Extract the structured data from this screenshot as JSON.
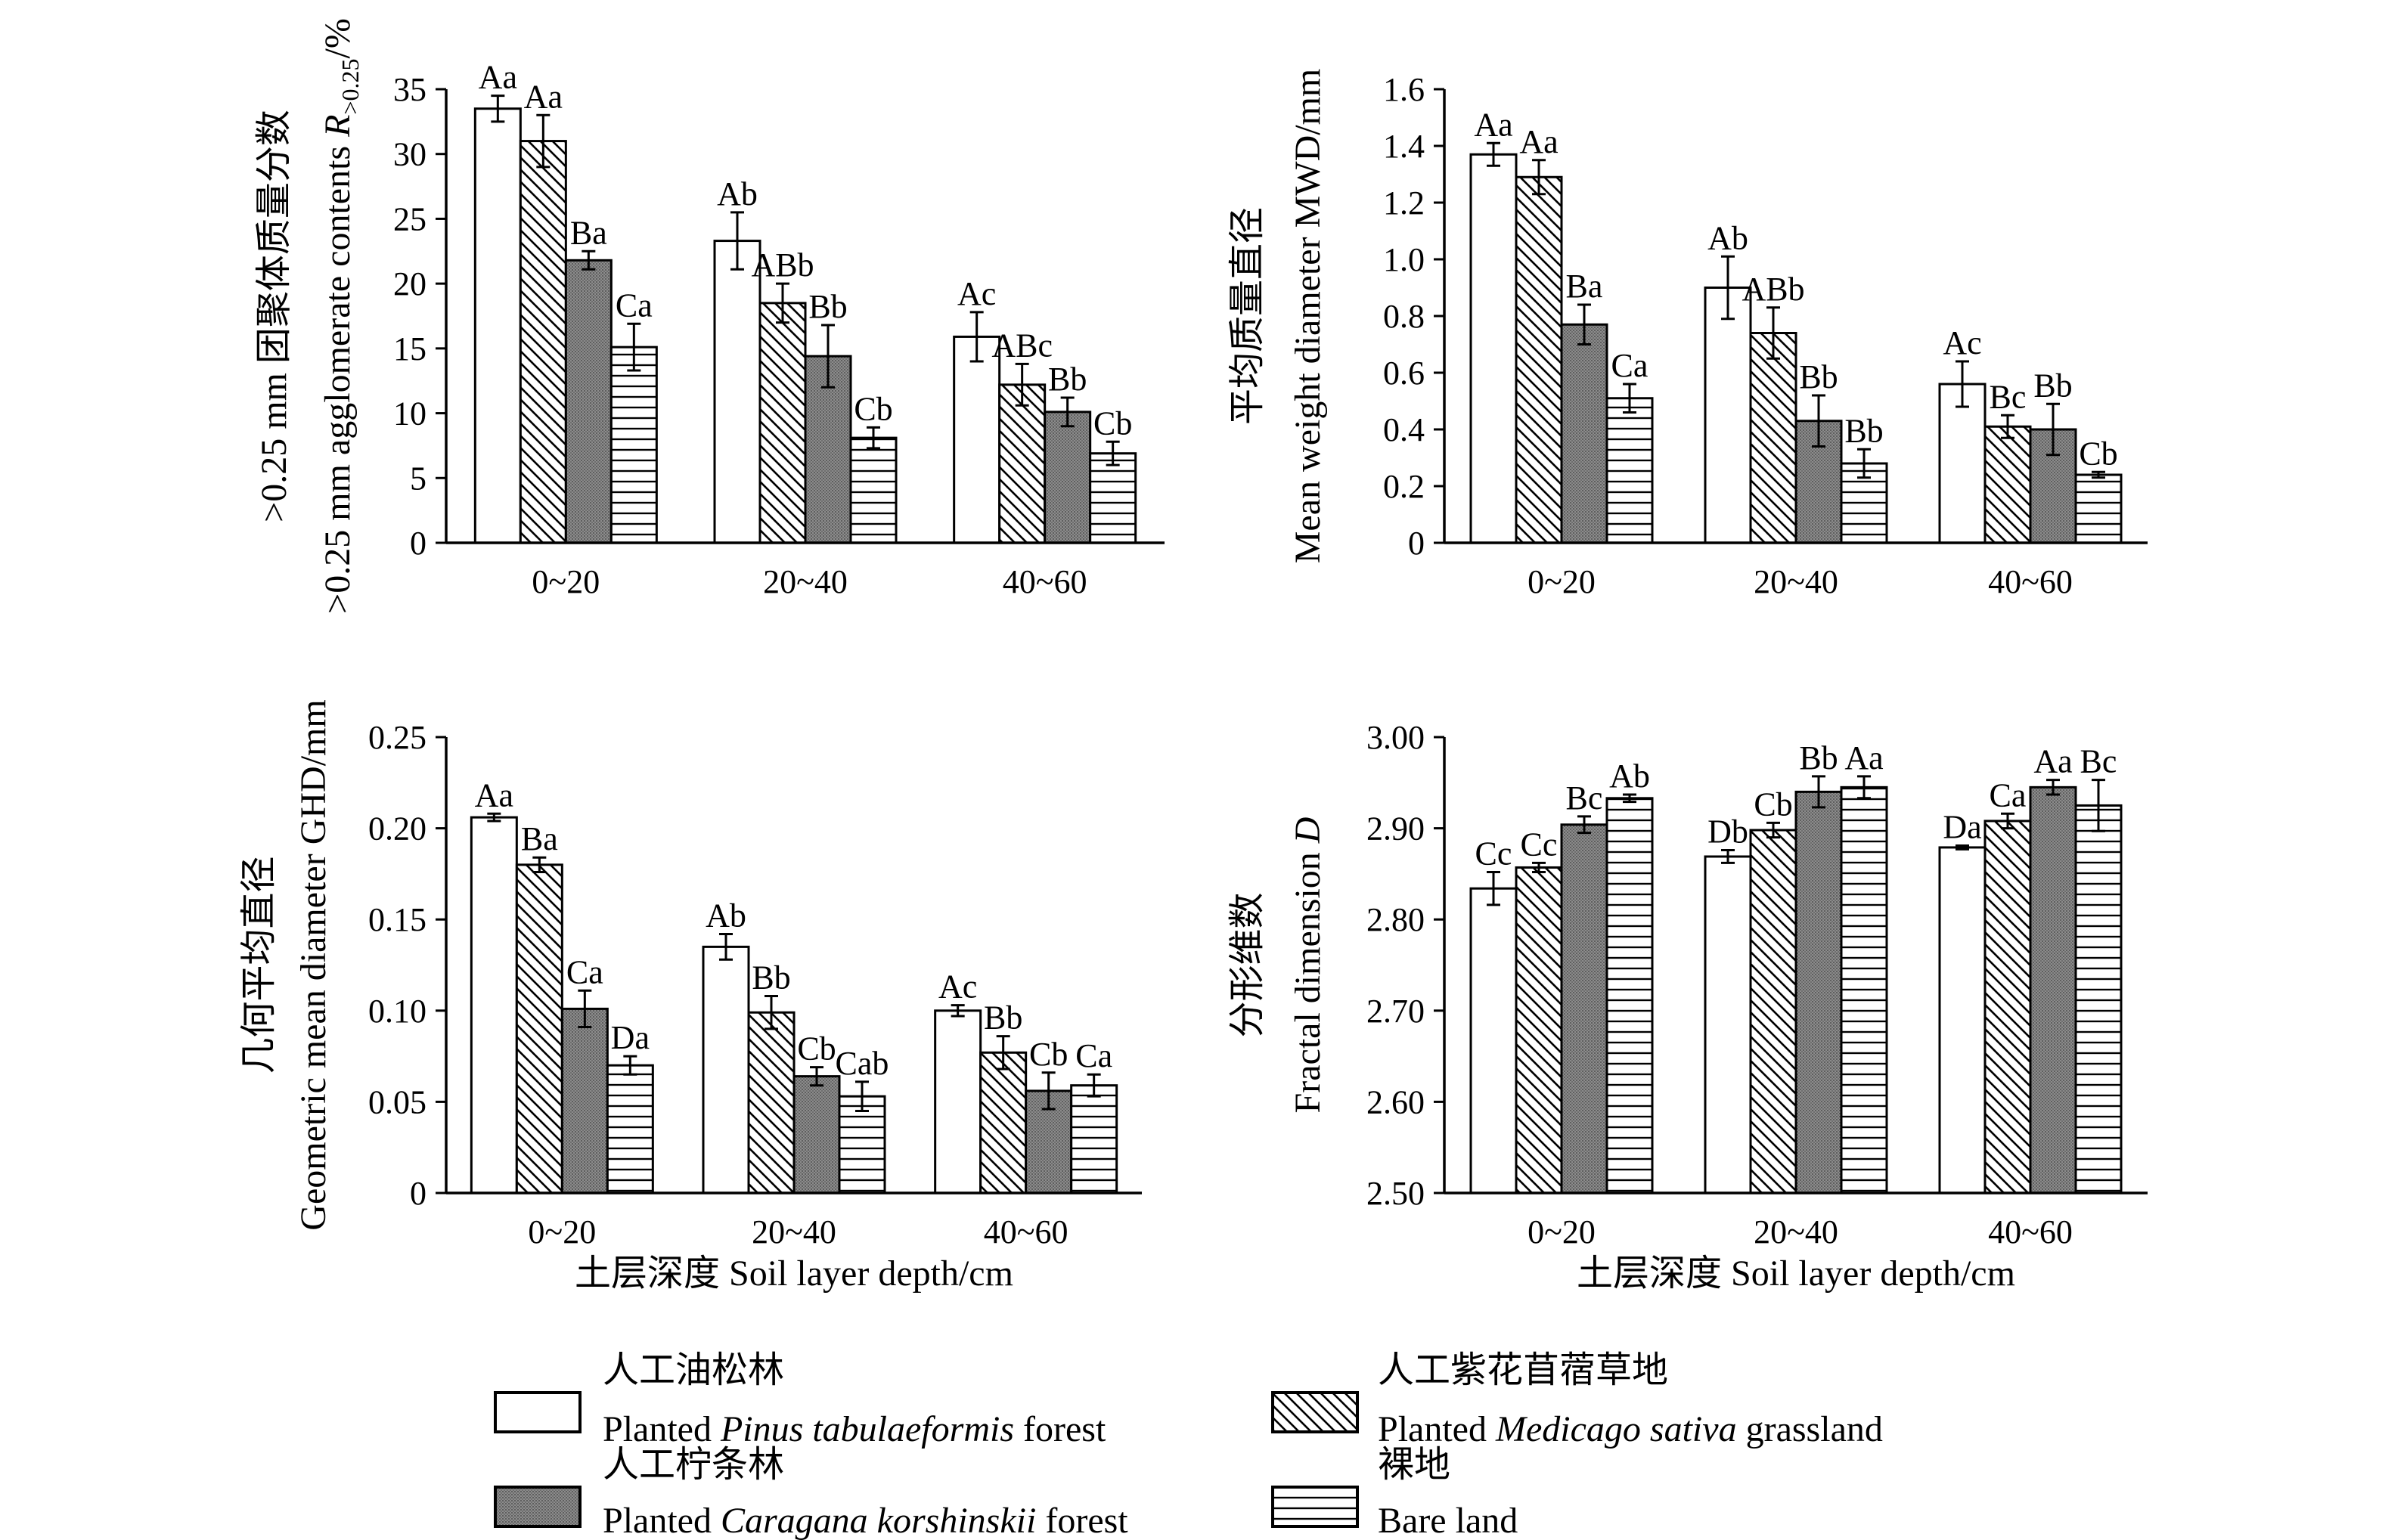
{
  "legend": {
    "items": [
      {
        "key": "pinus",
        "cn": "人工油松林",
        "en_pre": "Planted ",
        "en_ital": "Pinus tabulaeformis",
        "en_post": " forest",
        "pattern": "white"
      },
      {
        "key": "medicago",
        "cn": "人工紫花苜蓿草地",
        "en_pre": "Planted ",
        "en_ital": "Medicago sativa",
        "en_post": " grassland",
        "pattern": "diag"
      },
      {
        "key": "caragana",
        "cn": "人工柠条林",
        "en_pre": "Planted ",
        "en_ital": "Caragana korshinskii",
        "en_post": " forest",
        "pattern": "grey"
      },
      {
        "key": "bare",
        "cn": "裸地",
        "en_pre": "Bare land",
        "en_ital": "",
        "en_post": "",
        "pattern": "hlines"
      }
    ]
  },
  "chart_data": [
    {
      "id": "r025",
      "type": "bar",
      "categories": [
        "0~20",
        "20~40",
        "40~60"
      ],
      "ylabel_cn": ">0.25 mm 团聚体质量分数",
      "ylabel_en_pre": ">0.25 mm agglomerate contents ",
      "ylabel_en_sym": "R",
      "ylabel_en_sub": ">0.25",
      "ylabel_en_post": "/%",
      "xlabel": "",
      "ylim": [
        0,
        35
      ],
      "yticks": [
        0,
        5,
        10,
        15,
        20,
        25,
        30,
        35
      ],
      "ytick_labels": [
        "0",
        "5",
        "10",
        "15",
        "20",
        "25",
        "30",
        "35"
      ],
      "series": [
        {
          "name": "Planted Pinus tabulaeformis forest",
          "values": [
            33.5,
            23.3,
            15.9
          ],
          "errors": [
            1.0,
            2.2,
            1.9
          ],
          "labels": [
            "Aa",
            "Ab",
            "Ac"
          ]
        },
        {
          "name": "Planted Medicago sativa grassland",
          "values": [
            31.0,
            18.5,
            12.2
          ],
          "errors": [
            2.0,
            1.5,
            1.6
          ],
          "labels": [
            "Aa",
            "ABb",
            "ABc"
          ]
        },
        {
          "name": "Planted Caragana korshinskii forest",
          "values": [
            21.8,
            14.4,
            10.1
          ],
          "errors": [
            0.7,
            2.4,
            1.1
          ],
          "labels": [
            "Ba",
            "Bb",
            "Bb"
          ]
        },
        {
          "name": "Bare land",
          "values": [
            15.1,
            8.1,
            6.9
          ],
          "errors": [
            1.8,
            0.8,
            0.9
          ],
          "labels": [
            "Ca",
            "Cb",
            "Cb"
          ]
        }
      ]
    },
    {
      "id": "mwd",
      "type": "bar",
      "categories": [
        "0~20",
        "20~40",
        "40~60"
      ],
      "ylabel_cn": "平均质量直径",
      "ylabel_en": "Mean weight diameter MWD/mm",
      "xlabel": "",
      "ylim": [
        0,
        1.6
      ],
      "yticks": [
        0,
        0.2,
        0.4,
        0.6,
        0.8,
        1.0,
        1.2,
        1.4,
        1.6
      ],
      "ytick_labels": [
        "0",
        "0.2",
        "0.4",
        "0.6",
        "0.8",
        "1.0",
        "1.2",
        "1.4",
        "1.6"
      ],
      "series": [
        {
          "name": "Planted Pinus tabulaeformis forest",
          "values": [
            1.37,
            0.9,
            0.56
          ],
          "errors": [
            0.04,
            0.11,
            0.08
          ],
          "labels": [
            "Aa",
            "Ab",
            "Ac"
          ]
        },
        {
          "name": "Planted Medicago sativa grassland",
          "values": [
            1.29,
            0.74,
            0.41
          ],
          "errors": [
            0.06,
            0.09,
            0.04
          ],
          "labels": [
            "Aa",
            "ABb",
            "Bc"
          ]
        },
        {
          "name": "Planted Caragana korshinskii forest",
          "values": [
            0.77,
            0.43,
            0.4
          ],
          "errors": [
            0.07,
            0.09,
            0.09
          ],
          "labels": [
            "Ba",
            "Bb",
            "Bb"
          ]
        },
        {
          "name": "Bare land",
          "values": [
            0.51,
            0.28,
            0.24
          ],
          "errors": [
            0.05,
            0.05,
            0.01
          ],
          "labels": [
            "Ca",
            "Bb",
            "Cb"
          ]
        }
      ]
    },
    {
      "id": "ghd",
      "type": "bar",
      "categories": [
        "0~20",
        "20~40",
        "40~60"
      ],
      "ylabel_cn": "几何平均直径",
      "ylabel_en": "Geometric mean diameter GHD/mm",
      "xlabel": "土层深度 Soil layer depth/cm",
      "ylim": [
        0,
        0.25
      ],
      "yticks": [
        0,
        0.05,
        0.1,
        0.15,
        0.2,
        0.25
      ],
      "ytick_labels": [
        "0",
        "0.05",
        "0.10",
        "0.15",
        "0.20",
        "0.25"
      ],
      "series": [
        {
          "name": "Planted Pinus tabulaeformis forest",
          "values": [
            0.206,
            0.135,
            0.1
          ],
          "errors": [
            0.002,
            0.007,
            0.003
          ],
          "labels": [
            "Aa",
            "Ab",
            "Ac"
          ]
        },
        {
          "name": "Planted Medicago sativa grassland",
          "values": [
            0.18,
            0.099,
            0.077
          ],
          "errors": [
            0.004,
            0.009,
            0.009
          ],
          "labels": [
            "Ba",
            "Bb",
            "Bb"
          ]
        },
        {
          "name": "Planted Caragana korshinskii forest",
          "values": [
            0.101,
            0.064,
            0.056
          ],
          "errors": [
            0.01,
            0.005,
            0.01
          ],
          "labels": [
            "Ca",
            "Cb",
            "Cb"
          ]
        },
        {
          "name": "Bare land",
          "values": [
            0.07,
            0.053,
            0.059
          ],
          "errors": [
            0.005,
            0.008,
            0.006
          ],
          "labels": [
            "Da",
            "Cab",
            "Ca"
          ]
        }
      ]
    },
    {
      "id": "fractal",
      "type": "bar",
      "categories": [
        "0~20",
        "20~40",
        "40~60"
      ],
      "ylabel_cn": "分形维数",
      "ylabel_en_pre": "Fractal dimension ",
      "ylabel_en_ital": "D",
      "xlabel": "土层深度 Soil layer depth/cm",
      "ylim": [
        2.5,
        3.0
      ],
      "yticks": [
        2.5,
        2.6,
        2.7,
        2.8,
        2.9,
        3.0
      ],
      "ytick_labels": [
        "2.50",
        "2.60",
        "2.70",
        "2.80",
        "2.90",
        "3.00"
      ],
      "series": [
        {
          "name": "Planted Pinus tabulaeformis forest",
          "values": [
            2.834,
            2.869,
            2.879
          ],
          "errors": [
            0.018,
            0.007,
            0.002
          ],
          "labels": [
            "Cc",
            "Db",
            "Da"
          ]
        },
        {
          "name": "Planted Medicago sativa grassland",
          "values": [
            2.857,
            2.898,
            2.908
          ],
          "errors": [
            0.005,
            0.008,
            0.008
          ],
          "labels": [
            "Cc",
            "Cb",
            "Ca"
          ]
        },
        {
          "name": "Planted Caragana korshinskii forest",
          "values": [
            2.904,
            2.94,
            2.945
          ],
          "errors": [
            0.009,
            0.017,
            0.008
          ],
          "labels": [
            "Bc",
            "Bb",
            "Aa"
          ]
        },
        {
          "name": "Bare land",
          "values": [
            2.933,
            2.945,
            2.925
          ],
          "errors": [
            0.004,
            0.012,
            0.028
          ],
          "labels": [
            "Ab",
            "Aa",
            "Bc"
          ]
        }
      ]
    }
  ]
}
